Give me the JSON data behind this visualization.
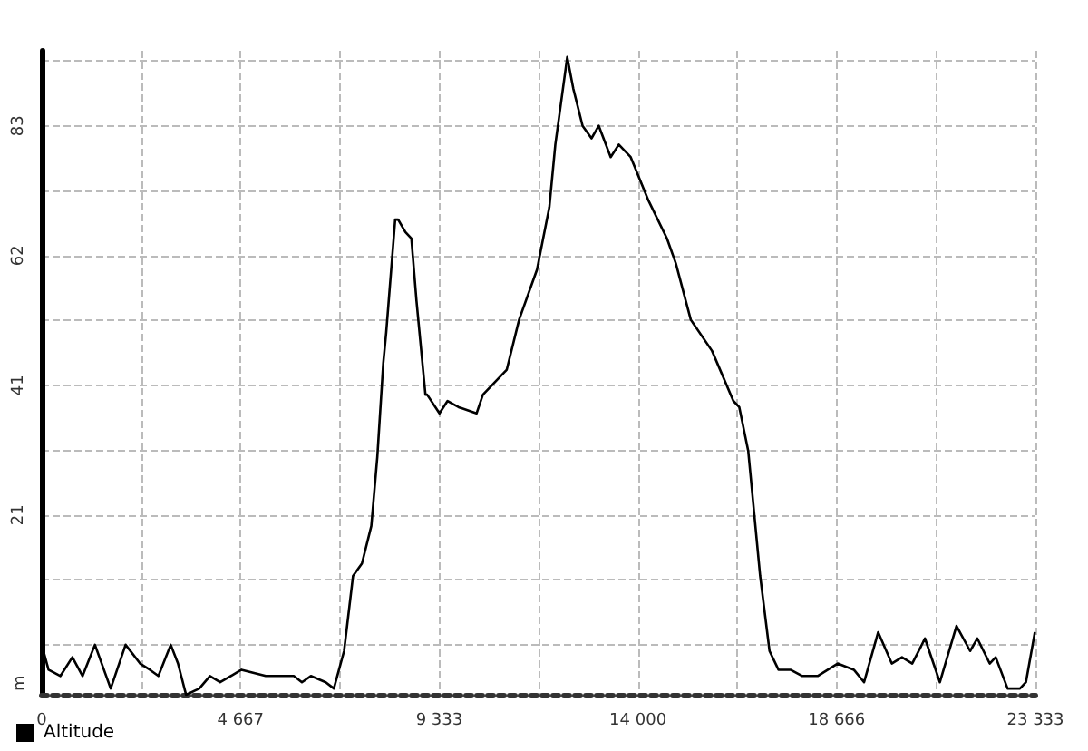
{
  "chart_data": {
    "type": "line",
    "ylabel": "m",
    "legend": "bottom left",
    "grid": true,
    "marker": "none",
    "line_style": "solid",
    "xlim": [
      0,
      23333
    ],
    "ylim": [
      -8,
      95
    ],
    "xticks": [
      0,
      {
        "value": 2333.3,
        "label": null
      },
      {
        "value": 4667,
        "label": "4 667"
      },
      {
        "value": 7000,
        "label": null
      },
      {
        "value": 9333,
        "label": "9 333"
      },
      {
        "value": 11666.5,
        "label": null
      },
      {
        "value": 14000,
        "label": "14 000"
      },
      {
        "value": 16333,
        "label": null
      },
      {
        "value": 18666,
        "label": "18 666"
      },
      {
        "value": 21000,
        "label": null
      },
      {
        "value": 23333,
        "label": "23 333"
      }
    ],
    "yticks": [
      {
        "value": 0,
        "label": null
      },
      {
        "value": 10.375,
        "label": null
      },
      {
        "value": 20.75,
        "label": "21"
      },
      {
        "value": 31.125,
        "label": null
      },
      {
        "value": 41.5,
        "label": "41"
      },
      {
        "value": 51.875,
        "label": null
      },
      {
        "value": 62.25,
        "label": "62"
      },
      {
        "value": 72.625,
        "label": null
      },
      {
        "value": 83,
        "label": "83"
      },
      {
        "value": 93.375,
        "label": null
      }
    ],
    "series": [
      {
        "name": "Altitude",
        "color": "#000000",
        "x": [
          0,
          160,
          440,
          720,
          960,
          1250,
          1620,
          1970,
          2310,
          2540,
          2740,
          3030,
          3200,
          3390,
          3700,
          3950,
          4190,
          4690,
          5260,
          5680,
          5920,
          6110,
          6320,
          6670,
          6860,
          7100,
          7310,
          7520,
          7740,
          7880,
          8020,
          8090,
          8300,
          8370,
          8540,
          8680,
          8800,
          9010,
          9050,
          9340,
          9530,
          9790,
          10210,
          10360,
          10640,
          10920,
          11210,
          11630,
          11920,
          12060,
          12340,
          12480,
          12700,
          12910,
          13080,
          13360,
          13550,
          13830,
          14250,
          14680,
          14890,
          15240,
          15740,
          16240,
          16380,
          16590,
          16870,
          17090,
          17300,
          17580,
          17860,
          18220,
          18690,
          19070,
          19310,
          19640,
          19960,
          20200,
          20440,
          20740,
          21090,
          21480,
          21800,
          21970,
          22260,
          22400,
          22680,
          22970,
          23110,
          23320
        ],
        "values": [
          0,
          -4,
          -5,
          -2,
          -5,
          0,
          -7,
          0,
          -3,
          -4,
          -5,
          0,
          -3,
          -8,
          -7,
          -5,
          -6,
          -4,
          -5,
          -5,
          -5,
          -6,
          -5,
          -6,
          -7,
          -1,
          11,
          13,
          19,
          30,
          45,
          50,
          68,
          68,
          66,
          65,
          55,
          40,
          40,
          37,
          39,
          38,
          37,
          40,
          42,
          44,
          52,
          60,
          70,
          80,
          94,
          89,
          83,
          81,
          83,
          78,
          80,
          78,
          71,
          65,
          61,
          52,
          47,
          39,
          38,
          31,
          11,
          -1,
          -4,
          -4,
          -5,
          -5,
          -3,
          -4,
          -6,
          2,
          -3,
          -2,
          -3,
          1,
          -6,
          3,
          -1,
          1,
          -3,
          -2,
          -7,
          -7,
          -6,
          2
        ]
      }
    ]
  }
}
